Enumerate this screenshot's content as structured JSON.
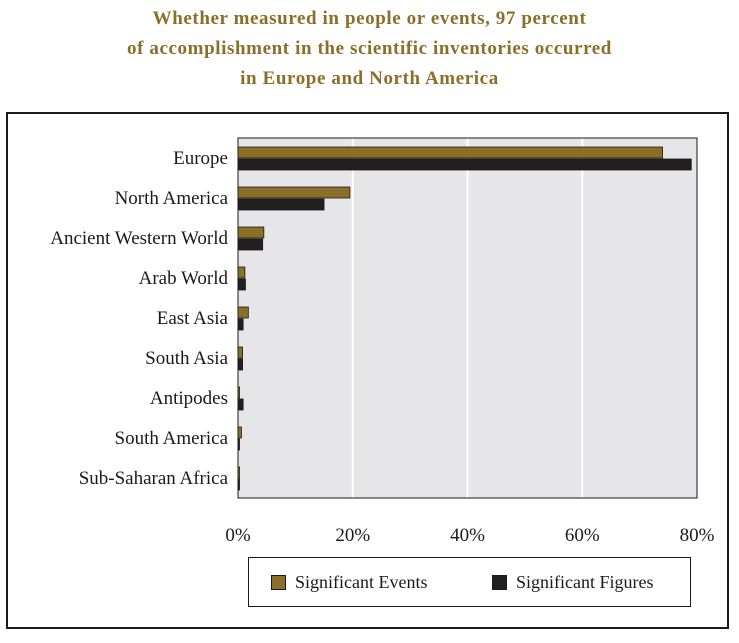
{
  "title_lines": [
    "Whether measured in people or events, 97 percent",
    "of accomplishment in the scientific inventories occurred",
    "in Europe and North America"
  ],
  "colors": {
    "title": "#8B6E28",
    "events": "#8B6E28",
    "figures": "#231F20",
    "plot_bg": "#E6E6E8",
    "grid": "#ffffff"
  },
  "legend": {
    "events_label": "Significant Events",
    "figures_label": "Significant Figures"
  },
  "chart_data": {
    "type": "bar",
    "orientation": "horizontal",
    "categories": [
      "Europe",
      "North America",
      "Ancient Western World",
      "Arab World",
      "East Asia",
      "South Asia",
      "Antipodes",
      "South America",
      "Sub-Saharan Africa"
    ],
    "series": [
      {
        "name": "Significant Events",
        "values": [
          74,
          19.5,
          4.5,
          1.2,
          1.8,
          0.8,
          0.2,
          0.6,
          0.2
        ]
      },
      {
        "name": "Significant Figures",
        "values": [
          79,
          15,
          4.3,
          1.3,
          0.9,
          0.8,
          0.9,
          0.1,
          0.2
        ]
      }
    ],
    "xlim": [
      0,
      80
    ],
    "xticks": [
      0,
      20,
      40,
      60,
      80
    ],
    "tick_labels": [
      "0%",
      "20%",
      "40%",
      "60%",
      "80%"
    ],
    "grid": true,
    "legend_position": "bottom"
  }
}
